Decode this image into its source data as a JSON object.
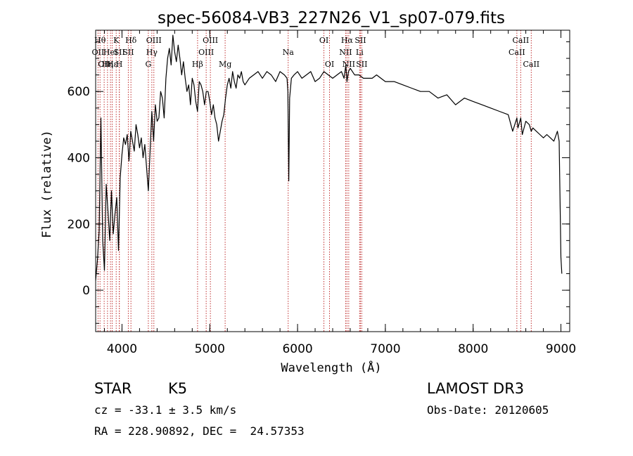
{
  "chart_data": {
    "type": "line",
    "title": "spec-56084-VB3_227N26_V1_sp07-079.fits",
    "xlabel": "Wavelength (Å)",
    "ylabel": "Flux (relative)",
    "xlim": [
      3700,
      9100
    ],
    "ylim": [
      -125,
      785
    ],
    "x_ticks": [
      4000,
      5000,
      6000,
      7000,
      8000,
      9000
    ],
    "y_ticks": [
      0,
      200,
      400,
      600
    ],
    "x_minor_step": 200,
    "y_minor_step": 50,
    "series": [
      {
        "name": "spectrum",
        "x": [
          3700,
          3720,
          3740,
          3760,
          3780,
          3800,
          3820,
          3840,
          3860,
          3880,
          3900,
          3920,
          3940,
          3960,
          3980,
          4000,
          4020,
          4040,
          4060,
          4080,
          4100,
          4120,
          4140,
          4160,
          4180,
          4200,
          4220,
          4240,
          4260,
          4280,
          4300,
          4320,
          4340,
          4360,
          4380,
          4400,
          4420,
          4440,
          4460,
          4480,
          4500,
          4520,
          4540,
          4560,
          4580,
          4600,
          4620,
          4640,
          4660,
          4680,
          4700,
          4720,
          4740,
          4760,
          4780,
          4800,
          4820,
          4840,
          4860,
          4880,
          4900,
          4920,
          4940,
          4960,
          4980,
          5000,
          5020,
          5040,
          5060,
          5080,
          5100,
          5120,
          5140,
          5160,
          5180,
          5200,
          5220,
          5240,
          5260,
          5280,
          5300,
          5320,
          5340,
          5360,
          5380,
          5400,
          5450,
          5500,
          5550,
          5600,
          5650,
          5700,
          5750,
          5800,
          5850,
          5880,
          5890,
          5895,
          5900,
          5910,
          5930,
          5960,
          6000,
          6050,
          6100,
          6150,
          6200,
          6250,
          6300,
          6350,
          6400,
          6450,
          6500,
          6530,
          6550,
          6563,
          6580,
          6600,
          6650,
          6700,
          6750,
          6800,
          6850,
          6900,
          6950,
          7000,
          7100,
          7200,
          7300,
          7400,
          7500,
          7600,
          7700,
          7800,
          7900,
          8000,
          8100,
          8200,
          8300,
          8400,
          8450,
          8498,
          8510,
          8542,
          8560,
          8600,
          8640,
          8662,
          8680,
          8720,
          8760,
          8800,
          8840,
          8880,
          8920,
          8960,
          8980,
          9000,
          9010
        ],
        "y": [
          30,
          90,
          180,
          520,
          150,
          60,
          320,
          240,
          150,
          300,
          170,
          230,
          280,
          120,
          340,
          410,
          460,
          440,
          470,
          390,
          480,
          450,
          420,
          500,
          470,
          430,
          460,
          400,
          440,
          370,
          300,
          420,
          540,
          450,
          560,
          510,
          520,
          600,
          580,
          520,
          640,
          700,
          730,
          680,
          770,
          720,
          690,
          740,
          700,
          650,
          690,
          640,
          600,
          620,
          560,
          640,
          620,
          570,
          540,
          630,
          620,
          600,
          560,
          600,
          600,
          570,
          530,
          560,
          520,
          500,
          450,
          480,
          510,
          530,
          580,
          620,
          640,
          610,
          660,
          630,
          610,
          650,
          640,
          660,
          630,
          620,
          640,
          650,
          660,
          640,
          660,
          650,
          630,
          660,
          650,
          640,
          600,
          450,
          330,
          580,
          640,
          650,
          660,
          640,
          650,
          660,
          630,
          640,
          660,
          650,
          640,
          650,
          660,
          640,
          680,
          630,
          660,
          670,
          650,
          650,
          640,
          640,
          640,
          650,
          640,
          630,
          630,
          620,
          610,
          600,
          600,
          580,
          590,
          560,
          580,
          570,
          560,
          550,
          540,
          530,
          480,
          520,
          490,
          520,
          470,
          510,
          500,
          480,
          490,
          480,
          470,
          460,
          470,
          460,
          450,
          480,
          450,
          100,
          50
        ],
        "color": "#000000"
      }
    ],
    "spectral_lines": [
      {
        "wavelength": 3727,
        "label": "OII",
        "row": 2
      },
      {
        "wavelength": 3750,
        "label": "Hθ",
        "row": 1
      },
      {
        "wavelength": 3797,
        "label": "OII",
        "row": 3
      },
      {
        "wavelength": 3835,
        "label": "Hη",
        "row": 3
      },
      {
        "wavelength": 3869,
        "label": "HeI",
        "row": 2
      },
      {
        "wavelength": 3889,
        "label": "Hε",
        "row": 3
      },
      {
        "wavelength": 3934,
        "label": "K",
        "row": 1
      },
      {
        "wavelength": 3969,
        "label": "H",
        "row": 3
      },
      {
        "wavelength": 3970,
        "label": "SII",
        "row": 2
      },
      {
        "wavelength": 4072,
        "label": "SII",
        "row": 2
      },
      {
        "wavelength": 4102,
        "label": "Hδ",
        "row": 1
      },
      {
        "wavelength": 4300,
        "label": "G",
        "row": 3
      },
      {
        "wavelength": 4340,
        "label": "Hγ",
        "row": 2
      },
      {
        "wavelength": 4363,
        "label": "OIII",
        "row": 1
      },
      {
        "wavelength": 4861,
        "label": "Hβ",
        "row": 3
      },
      {
        "wavelength": 4959,
        "label": "OIII",
        "row": 2
      },
      {
        "wavelength": 5007,
        "label": "OIII",
        "row": 1
      },
      {
        "wavelength": 5175,
        "label": "Mg",
        "row": 3
      },
      {
        "wavelength": 5893,
        "label": "Na",
        "row": 2
      },
      {
        "wavelength": 6300,
        "label": "OI",
        "row": 1
      },
      {
        "wavelength": 6364,
        "label": "OI",
        "row": 3
      },
      {
        "wavelength": 6548,
        "label": "NII",
        "row": 2
      },
      {
        "wavelength": 6563,
        "label": "Hα",
        "row": 1
      },
      {
        "wavelength": 6583,
        "label": "NII",
        "row": 3
      },
      {
        "wavelength": 6707,
        "label": "Li",
        "row": 2
      },
      {
        "wavelength": 6716,
        "label": "SII",
        "row": 1
      },
      {
        "wavelength": 6731,
        "label": "SII",
        "row": 3
      },
      {
        "wavelength": 8498,
        "label": "CaII",
        "row": 2
      },
      {
        "wavelength": 8542,
        "label": "CaII",
        "row": 1
      },
      {
        "wavelength": 8662,
        "label": "CaII",
        "row": 3
      }
    ]
  },
  "info": {
    "class_label": "STAR",
    "subclass": "K5",
    "survey": "LAMOST DR3",
    "redshift": "cz = -33.1 ± 3.5 km/s",
    "obs_date": "Obs-Date: 20120605",
    "coords": "RA = 228.90892, DEC =  24.57353"
  }
}
